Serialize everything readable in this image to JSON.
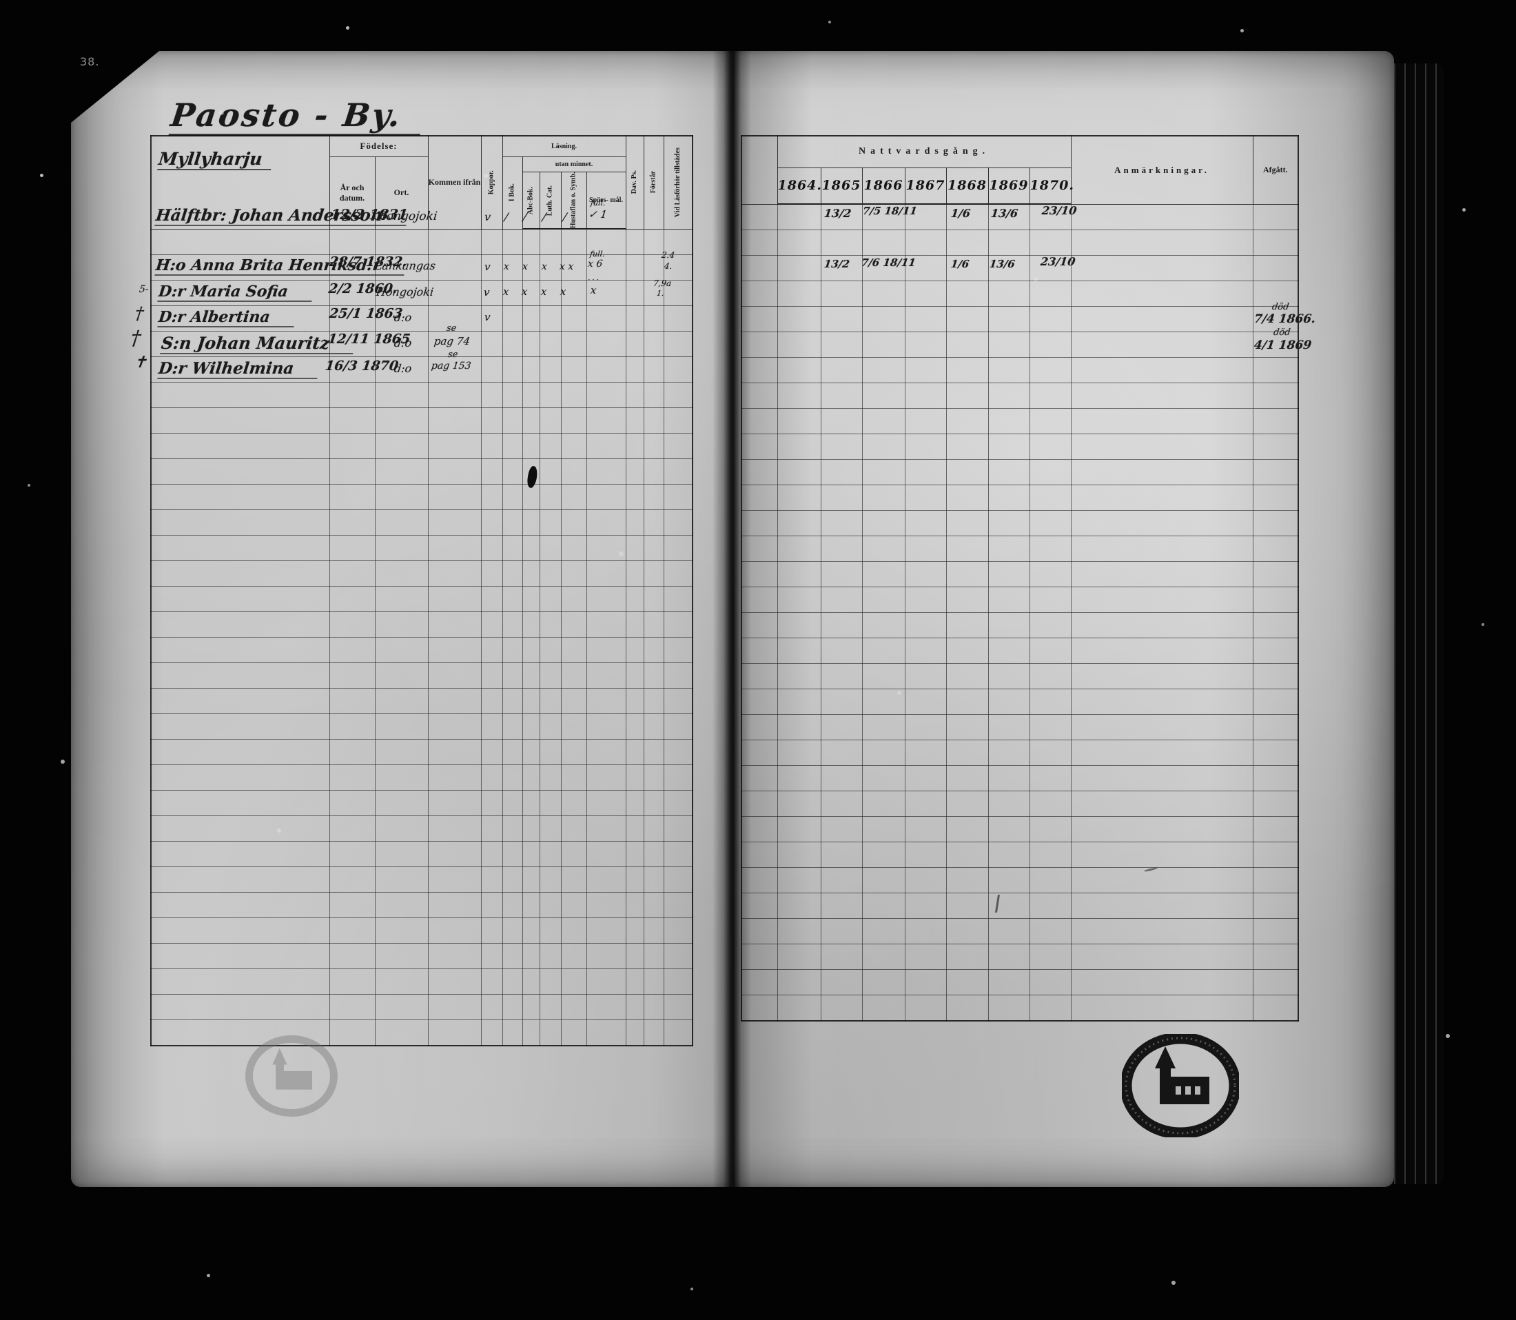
{
  "page_number": "38.",
  "title": "Paosto - By.",
  "household_name": "Myllyharju",
  "left_table": {
    "col_fodelse": "Födelse:",
    "col_ar_och_datum": "År och datum.",
    "col_ort": "Ort.",
    "col_kommen_ifran": "Kommen ifrån",
    "col_koppor": "Koppor.",
    "col_lasning": "Läsning.",
    "col_utan_minnet": "utan minnet.",
    "col_i_bok": "I Bok.",
    "col_abc_bok": "Abc-Bok.",
    "col_luth_cat": "Luth. Cat.",
    "col_hustaflan": "Hustaflan o. Symb.",
    "col_sporsmal": "Spörs- mål.",
    "col_dav_ps": "Dav. Ps.",
    "col_forstar": "Förstår",
    "col_vid_lasforhor": "Vid Läsförhör tillstädes"
  },
  "right_table": {
    "col_nattvardsgang": "Nattvardsgång.",
    "years": [
      "1864.",
      "1865",
      "1866",
      "1867",
      "1868",
      "1869",
      "1870."
    ],
    "col_anmarkningar": "Anmärkningar.",
    "col_afgatt": "Afgått."
  },
  "persons": [
    {
      "margin": "",
      "name": "Hälftbr: Johan Andersson",
      "birth": "12/2 1831",
      "ort": "Hongojoki",
      "kommen_a": "",
      "kommen_b": "",
      "koppor": "v",
      "mark_ibok": "/",
      "mark_abc": "/",
      "mark_luth": "/",
      "mark_hust": "/",
      "spors_top": "full.",
      "spors": "✓ 1",
      "vid_a": "",
      "vid_b": "",
      "c1864": "",
      "c1865": "13/2",
      "c1866": "7/5 18/11",
      "c1867": "",
      "c1868": "1/6",
      "c1869": "13/6",
      "c1870": "23/10",
      "afg_a": "",
      "afg_b": ""
    },
    {
      "margin": "",
      "name": "H:o Anna Brita Henriksd:r",
      "birth": "28/7 1832.",
      "ort": "Lankangas",
      "kommen_a": "",
      "kommen_b": "",
      "koppor": "v",
      "mark_ibok": "x",
      "mark_abc": "x",
      "mark_luth": "x",
      "mark_hust": "x x",
      "spors_top": "full.",
      "spors": "x 6",
      "vid_a": "2.4",
      "vid_b": "4.",
      "c1864": "",
      "c1865": "13/2",
      "c1866": "7/6 18/11",
      "c1867": "",
      "c1868": "1/6",
      "c1869": "13/6",
      "c1870": "23/10",
      "afg_a": "",
      "afg_b": ""
    },
    {
      "margin": "5-",
      "name": "D:r Maria Sofia",
      "birth": "2/2 1860.",
      "ort": "Hongojoki",
      "kommen_a": "",
      "kommen_b": "",
      "koppor": "v",
      "mark_ibok": "x",
      "mark_abc": "x",
      "mark_luth": "x",
      "mark_hust": "x",
      "spors_top": "· · ·",
      "spors": "x",
      "vid_a": "7,9a",
      "vid_b": "1.",
      "c1864": "",
      "c1865": "",
      "c1866": "",
      "c1867": "",
      "c1868": "",
      "c1869": "",
      "c1870": "",
      "afg_a": "",
      "afg_b": ""
    },
    {
      "margin": "†",
      "name": "D:r Albertina",
      "birth": "25/1 1863",
      "ort": "d:o",
      "kommen_a": "",
      "kommen_b": "",
      "koppor": "v",
      "mark_ibok": "",
      "mark_abc": "",
      "mark_luth": "",
      "mark_hust": "",
      "spors_top": "",
      "spors": "",
      "vid_a": "",
      "vid_b": "",
      "c1864": "",
      "c1865": "",
      "c1866": "",
      "c1867": "",
      "c1868": "",
      "c1869": "",
      "c1870": "",
      "afg_a": "död",
      "afg_b": "7/4 1866."
    },
    {
      "margin": "†",
      "name": "S:n Johan Mauritz",
      "birth": "12/11 1865",
      "ort": "d:o",
      "kommen_a": "se",
      "kommen_b": "pag 74",
      "koppor": "",
      "mark_ibok": "",
      "mark_abc": "",
      "mark_luth": "",
      "mark_hust": "",
      "spors_top": "",
      "spors": "",
      "vid_a": "",
      "vid_b": "",
      "c1864": "",
      "c1865": "",
      "c1866": "",
      "c1867": "",
      "c1868": "",
      "c1869": "",
      "c1870": "",
      "afg_a": "död",
      "afg_b": "4/1 1869"
    },
    {
      "margin": "✝",
      "name": "D:r Wilhelmina",
      "birth": "16/3 1870",
      "ort": "d:o",
      "kommen_a": "se",
      "kommen_b": "pag 153",
      "koppor": "",
      "mark_ibok": "",
      "mark_abc": "",
      "mark_luth": "",
      "mark_hust": "",
      "spors_top": "",
      "spors": "",
      "vid_a": "",
      "vid_b": "",
      "c1864": "",
      "c1865": "",
      "c1866": "",
      "c1867": "",
      "c1868": "",
      "c1869": "",
      "c1870": "",
      "afg_a": "",
      "afg_b": ""
    }
  ]
}
